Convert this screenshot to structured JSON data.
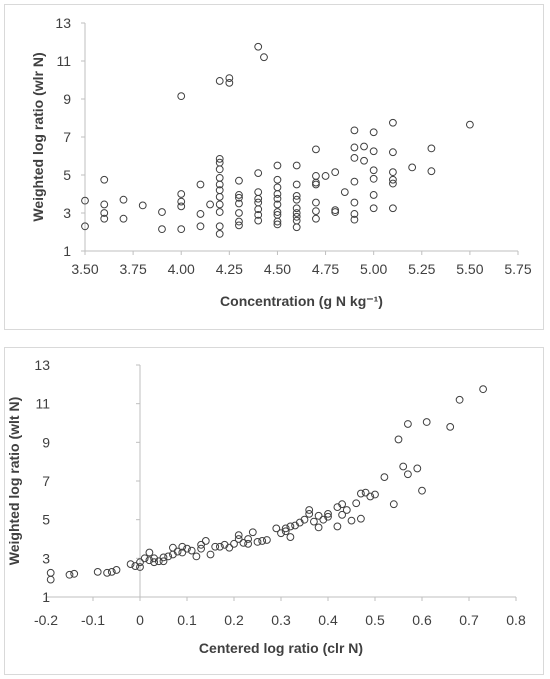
{
  "chart_data": [
    {
      "type": "scatter",
      "xlabel": "Concentration (g N kg⁻¹)",
      "ylabel": "Weighted log ratio (wlr N)",
      "xlim": [
        3.5,
        5.75
      ],
      "ylim": [
        1,
        13
      ],
      "xticks": [
        "3.50",
        "3.75",
        "4.00",
        "4.25",
        "4.50",
        "4.75",
        "5.00",
        "5.25",
        "5.50",
        "5.75"
      ],
      "yticks": [
        "1",
        "3",
        "5",
        "7",
        "9",
        "11",
        "13"
      ],
      "grid": false,
      "marker": "open-circle",
      "color": "#404040",
      "points": [
        [
          3.5,
          2.3
        ],
        [
          3.5,
          3.65
        ],
        [
          3.6,
          2.7
        ],
        [
          3.6,
          3.0
        ],
        [
          3.6,
          3.45
        ],
        [
          3.6,
          4.75
        ],
        [
          3.7,
          2.7
        ],
        [
          3.7,
          3.7
        ],
        [
          3.8,
          3.4
        ],
        [
          3.9,
          2.15
        ],
        [
          3.9,
          3.05
        ],
        [
          4.0,
          2.15
        ],
        [
          4.0,
          3.35
        ],
        [
          4.0,
          3.6
        ],
        [
          4.0,
          4.0
        ],
        [
          4.0,
          9.15
        ],
        [
          4.1,
          2.3
        ],
        [
          4.1,
          2.95
        ],
        [
          4.1,
          4.5
        ],
        [
          4.15,
          3.45
        ],
        [
          4.2,
          1.9
        ],
        [
          4.2,
          2.3
        ],
        [
          4.2,
          3.05
        ],
        [
          4.2,
          3.45
        ],
        [
          4.2,
          3.85
        ],
        [
          4.2,
          4.2
        ],
        [
          4.2,
          4.5
        ],
        [
          4.2,
          4.85
        ],
        [
          4.2,
          5.3
        ],
        [
          4.2,
          5.65
        ],
        [
          4.2,
          5.85
        ],
        [
          4.2,
          9.95
        ],
        [
          4.25,
          9.85
        ],
        [
          4.25,
          10.1
        ],
        [
          4.3,
          2.35
        ],
        [
          4.3,
          2.55
        ],
        [
          4.3,
          3.0
        ],
        [
          4.3,
          3.5
        ],
        [
          4.3,
          3.8
        ],
        [
          4.3,
          3.95
        ],
        [
          4.3,
          4.7
        ],
        [
          4.4,
          2.6
        ],
        [
          4.4,
          2.9
        ],
        [
          4.4,
          3.2
        ],
        [
          4.4,
          3.55
        ],
        [
          4.4,
          3.75
        ],
        [
          4.4,
          4.1
        ],
        [
          4.4,
          5.1
        ],
        [
          4.4,
          11.75
        ],
        [
          4.43,
          11.2
        ],
        [
          4.5,
          2.4
        ],
        [
          4.5,
          2.55
        ],
        [
          4.5,
          2.9
        ],
        [
          4.5,
          3.05
        ],
        [
          4.5,
          3.45
        ],
        [
          4.5,
          3.75
        ],
        [
          4.5,
          4.0
        ],
        [
          4.5,
          4.35
        ],
        [
          4.5,
          4.75
        ],
        [
          4.5,
          5.5
        ],
        [
          4.6,
          2.25
        ],
        [
          4.6,
          2.6
        ],
        [
          4.6,
          2.8
        ],
        [
          4.6,
          3.0
        ],
        [
          4.6,
          3.25
        ],
        [
          4.6,
          3.7
        ],
        [
          4.6,
          3.9
        ],
        [
          4.6,
          4.5
        ],
        [
          4.6,
          5.5
        ],
        [
          4.7,
          2.7
        ],
        [
          4.7,
          3.1
        ],
        [
          4.7,
          3.55
        ],
        [
          4.7,
          4.5
        ],
        [
          4.7,
          4.6
        ],
        [
          4.7,
          4.95
        ],
        [
          4.7,
          6.35
        ],
        [
          4.75,
          4.95
        ],
        [
          4.8,
          3.05
        ],
        [
          4.8,
          3.15
        ],
        [
          4.8,
          5.15
        ],
        [
          4.85,
          4.1
        ],
        [
          4.9,
          2.65
        ],
        [
          4.9,
          2.95
        ],
        [
          4.9,
          3.55
        ],
        [
          4.9,
          4.65
        ],
        [
          4.9,
          5.9
        ],
        [
          4.9,
          6.45
        ],
        [
          4.9,
          7.35
        ],
        [
          4.95,
          5.75
        ],
        [
          4.95,
          6.5
        ],
        [
          5.0,
          3.25
        ],
        [
          5.0,
          3.95
        ],
        [
          5.0,
          4.8
        ],
        [
          5.0,
          5.25
        ],
        [
          5.0,
          6.25
        ],
        [
          5.0,
          7.25
        ],
        [
          5.1,
          3.25
        ],
        [
          5.1,
          4.55
        ],
        [
          5.1,
          4.75
        ],
        [
          5.1,
          5.15
        ],
        [
          5.1,
          6.2
        ],
        [
          5.1,
          7.75
        ],
        [
          5.2,
          5.4
        ],
        [
          5.3,
          5.2
        ],
        [
          5.3,
          6.4
        ],
        [
          5.5,
          7.65
        ]
      ]
    },
    {
      "type": "scatter",
      "xlabel": "Centered log ratio (clr N)",
      "ylabel": "Weighted log ratio (wlt N)",
      "xlim": [
        -0.2,
        0.8
      ],
      "ylim": [
        1,
        13
      ],
      "xticks": [
        "-0.2",
        "-0.1",
        "0",
        "0.1",
        "0.2",
        "0.3",
        "0.4",
        "0.5",
        "0.6",
        "0.7",
        "0.8"
      ],
      "yticks": [
        "1",
        "3",
        "5",
        "7",
        "9",
        "11",
        "13"
      ],
      "grid": false,
      "marker": "open-circle",
      "color": "#404040",
      "points": [
        [
          -0.19,
          1.9
        ],
        [
          -0.19,
          2.25
        ],
        [
          -0.15,
          2.15
        ],
        [
          -0.14,
          2.2
        ],
        [
          -0.09,
          2.3
        ],
        [
          -0.07,
          2.25
        ],
        [
          -0.06,
          2.3
        ],
        [
          -0.05,
          2.4
        ],
        [
          -0.02,
          2.7
        ],
        [
          -0.01,
          2.6
        ],
        [
          0.0,
          2.55
        ],
        [
          0.0,
          2.8
        ],
        [
          0.01,
          3.0
        ],
        [
          0.02,
          2.9
        ],
        [
          0.02,
          3.3
        ],
        [
          0.03,
          3.0
        ],
        [
          0.03,
          2.8
        ],
        [
          0.04,
          2.85
        ],
        [
          0.05,
          3.05
        ],
        [
          0.05,
          2.85
        ],
        [
          0.06,
          3.1
        ],
        [
          0.07,
          3.2
        ],
        [
          0.07,
          3.55
        ],
        [
          0.08,
          3.35
        ],
        [
          0.09,
          3.3
        ],
        [
          0.09,
          3.6
        ],
        [
          0.1,
          3.5
        ],
        [
          0.11,
          3.4
        ],
        [
          0.12,
          3.1
        ],
        [
          0.13,
          3.5
        ],
        [
          0.13,
          3.7
        ],
        [
          0.14,
          3.9
        ],
        [
          0.15,
          3.2
        ],
        [
          0.16,
          3.6
        ],
        [
          0.17,
          3.6
        ],
        [
          0.18,
          3.7
        ],
        [
          0.19,
          3.55
        ],
        [
          0.2,
          3.75
        ],
        [
          0.21,
          4.0
        ],
        [
          0.21,
          4.2
        ],
        [
          0.22,
          3.8
        ],
        [
          0.23,
          3.75
        ],
        [
          0.23,
          4.0
        ],
        [
          0.24,
          4.35
        ],
        [
          0.25,
          3.85
        ],
        [
          0.26,
          3.9
        ],
        [
          0.27,
          3.95
        ],
        [
          0.29,
          4.55
        ],
        [
          0.3,
          4.3
        ],
        [
          0.31,
          4.4
        ],
        [
          0.31,
          4.55
        ],
        [
          0.32,
          4.65
        ],
        [
          0.32,
          4.1
        ],
        [
          0.33,
          4.7
        ],
        [
          0.34,
          4.85
        ],
        [
          0.35,
          5.0
        ],
        [
          0.36,
          5.3
        ],
        [
          0.36,
          5.5
        ],
        [
          0.37,
          4.9
        ],
        [
          0.38,
          5.2
        ],
        [
          0.38,
          4.6
        ],
        [
          0.39,
          5.0
        ],
        [
          0.4,
          5.15
        ],
        [
          0.4,
          5.3
        ],
        [
          0.42,
          4.65
        ],
        [
          0.42,
          5.65
        ],
        [
          0.43,
          5.25
        ],
        [
          0.43,
          5.8
        ],
        [
          0.44,
          5.5
        ],
        [
          0.45,
          4.95
        ],
        [
          0.46,
          5.85
        ],
        [
          0.47,
          5.05
        ],
        [
          0.47,
          6.35
        ],
        [
          0.48,
          6.4
        ],
        [
          0.49,
          6.2
        ],
        [
          0.5,
          6.3
        ],
        [
          0.52,
          7.2
        ],
        [
          0.54,
          5.8
        ],
        [
          0.55,
          9.15
        ],
        [
          0.56,
          7.75
        ],
        [
          0.57,
          7.35
        ],
        [
          0.57,
          9.95
        ],
        [
          0.59,
          7.65
        ],
        [
          0.6,
          6.5
        ],
        [
          0.61,
          10.05
        ],
        [
          0.66,
          9.8
        ],
        [
          0.68,
          11.2
        ],
        [
          0.73,
          11.75
        ]
      ]
    }
  ]
}
